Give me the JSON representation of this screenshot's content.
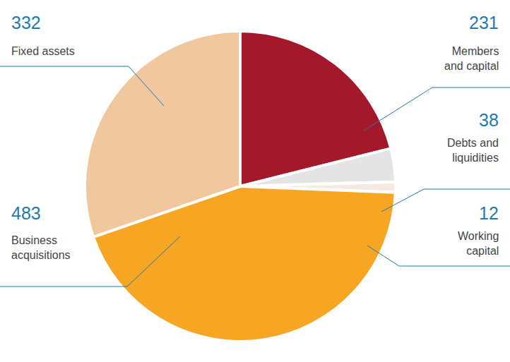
{
  "chart_data": {
    "type": "pie",
    "categories": [
      "Members and capital",
      "Debts and liquidities",
      "Working capital",
      "Business acquisitions",
      "Fixed assets"
    ],
    "values": [
      231,
      38,
      12,
      483,
      332
    ],
    "colors": [
      "#a3182b",
      "#e4e4e4",
      "#f3ebdf",
      "#f6a623",
      "#f1c89e"
    ],
    "data_labels": true
  }
}
